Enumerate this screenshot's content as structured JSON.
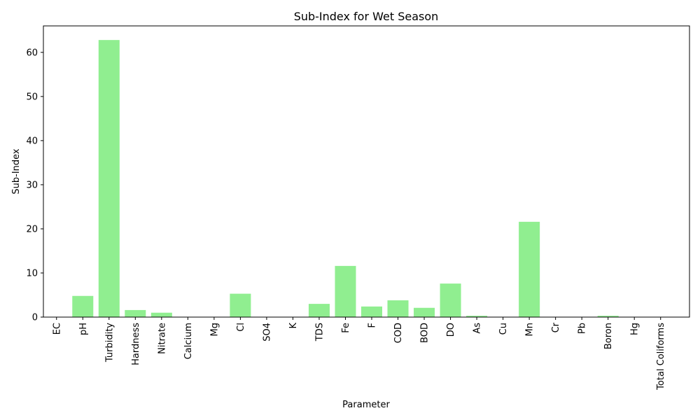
{
  "chart_data": {
    "type": "bar",
    "title": "Sub-Index for Wet Season",
    "xlabel": "Parameter",
    "ylabel": "Sub-Index",
    "categories": [
      "EC",
      "pH",
      "Turbidity",
      "Hardness",
      "Nitrate",
      "Calcium",
      "Mg",
      "Cl",
      "SO4",
      "K",
      "TDS",
      "Fe",
      "F",
      "COD",
      "BOD",
      "DO",
      "As",
      "Cu",
      "Mn",
      "Cr",
      "Pb",
      "Boron",
      "Hg",
      "Total Coliforms"
    ],
    "values": [
      0,
      4.8,
      62.8,
      1.6,
      1.0,
      0,
      0,
      5.3,
      0,
      0,
      3.0,
      11.6,
      2.4,
      3.8,
      2.1,
      7.6,
      0.3,
      0,
      21.6,
      0,
      0,
      0.3,
      0,
      0
    ],
    "ylim": [
      0,
      66
    ],
    "yticks": [
      0,
      10,
      20,
      30,
      40,
      50,
      60
    ],
    "bar_color": "#90ee90",
    "grid": false
  }
}
